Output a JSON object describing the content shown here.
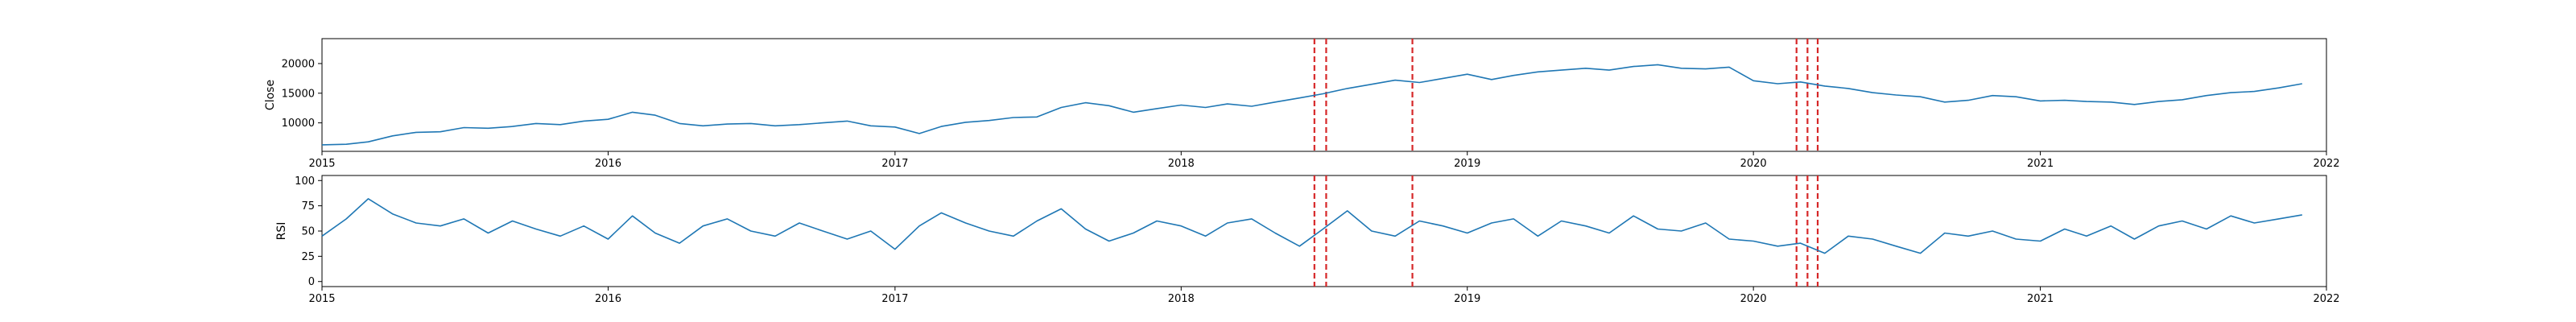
{
  "chart_data": [
    {
      "type": "line",
      "ylabel": "Close",
      "xlabel": "",
      "xlim": [
        "2015-01-01",
        "2022-01-01"
      ],
      "ylim": [
        5200,
        24200
      ],
      "x_ticks": [
        "2015",
        "2016",
        "2017",
        "2018",
        "2019",
        "2020",
        "2021",
        "2022"
      ],
      "y_ticks": [
        10000,
        15000,
        20000
      ],
      "grid": false,
      "series": [
        {
          "color": "#1f77b4",
          "points": [
            [
              "2015-01-01",
              6300
            ],
            [
              "2015-02-01",
              6400
            ],
            [
              "2015-03-01",
              6800
            ],
            [
              "2015-04-01",
              7800
            ],
            [
              "2015-05-01",
              8400
            ],
            [
              "2015-06-01",
              8500
            ],
            [
              "2015-07-01",
              9200
            ],
            [
              "2015-08-01",
              9100
            ],
            [
              "2015-09-01",
              9400
            ],
            [
              "2015-10-01",
              9900
            ],
            [
              "2015-11-01",
              9700
            ],
            [
              "2015-12-01",
              10300
            ],
            [
              "2016-01-01",
              10600
            ],
            [
              "2016-02-01",
              11800
            ],
            [
              "2016-03-01",
              11300
            ],
            [
              "2016-04-01",
              9900
            ],
            [
              "2016-05-01",
              9500
            ],
            [
              "2016-06-01",
              9800
            ],
            [
              "2016-07-01",
              9900
            ],
            [
              "2016-08-01",
              9500
            ],
            [
              "2016-09-01",
              9700
            ],
            [
              "2016-10-01",
              10000
            ],
            [
              "2016-11-01",
              10300
            ],
            [
              "2016-12-01",
              9500
            ],
            [
              "2017-01-01",
              9300
            ],
            [
              "2017-02-01",
              8200
            ],
            [
              "2017-03-01",
              9400
            ],
            [
              "2017-04-01",
              10100
            ],
            [
              "2017-05-01",
              10400
            ],
            [
              "2017-06-01",
              10900
            ],
            [
              "2017-07-01",
              11000
            ],
            [
              "2017-08-01",
              12600
            ],
            [
              "2017-09-01",
              13400
            ],
            [
              "2017-10-01",
              12900
            ],
            [
              "2017-11-01",
              11800
            ],
            [
              "2017-12-01",
              12400
            ],
            [
              "2018-01-01",
              13000
            ],
            [
              "2018-02-01",
              12600
            ],
            [
              "2018-03-01",
              13200
            ],
            [
              "2018-04-01",
              12800
            ],
            [
              "2018-05-01",
              13500
            ],
            [
              "2018-06-01",
              14200
            ],
            [
              "2018-07-01",
              14900
            ],
            [
              "2018-08-01",
              15800
            ],
            [
              "2018-09-01",
              16500
            ],
            [
              "2018-10-01",
              17200
            ],
            [
              "2018-11-01",
              16800
            ],
            [
              "2018-12-01",
              17500
            ],
            [
              "2019-01-01",
              18200
            ],
            [
              "2019-02-01",
              17300
            ],
            [
              "2019-03-01",
              18000
            ],
            [
              "2019-04-01",
              18600
            ],
            [
              "2019-05-01",
              18900
            ],
            [
              "2019-06-01",
              19200
            ],
            [
              "2019-07-01",
              18900
            ],
            [
              "2019-08-01",
              19500
            ],
            [
              "2019-09-01",
              19800
            ],
            [
              "2019-10-01",
              19200
            ],
            [
              "2019-11-01",
              19100
            ],
            [
              "2019-12-01",
              19400
            ],
            [
              "2020-01-01",
              17100
            ],
            [
              "2020-02-01",
              16600
            ],
            [
              "2020-03-01",
              16900
            ],
            [
              "2020-04-01",
              16200
            ],
            [
              "2020-05-01",
              15800
            ],
            [
              "2020-06-01",
              15100
            ],
            [
              "2020-07-01",
              14700
            ],
            [
              "2020-08-01",
              14400
            ],
            [
              "2020-09-01",
              13500
            ],
            [
              "2020-10-01",
              13800
            ],
            [
              "2020-11-01",
              14600
            ],
            [
              "2020-12-01",
              14400
            ],
            [
              "2021-01-01",
              13700
            ],
            [
              "2021-02-01",
              13800
            ],
            [
              "2021-03-01",
              13600
            ],
            [
              "2021-04-01",
              13500
            ],
            [
              "2021-05-01",
              13100
            ],
            [
              "2021-06-01",
              13600
            ],
            [
              "2021-07-01",
              13900
            ],
            [
              "2021-08-01",
              14600
            ],
            [
              "2021-09-01",
              15100
            ],
            [
              "2021-10-01",
              15300
            ],
            [
              "2021-11-01",
              15900
            ],
            [
              "2021-12-01",
              16600
            ]
          ]
        }
      ],
      "vlines": {
        "color": "#d62728",
        "style": "dashed",
        "x": [
          "2018-06-20",
          "2018-07-05",
          "2018-10-23",
          "2020-02-25",
          "2020-03-10",
          "2020-03-23"
        ]
      }
    },
    {
      "type": "line",
      "ylabel": "RSI",
      "xlabel": "",
      "xlim": [
        "2015-01-01",
        "2022-01-01"
      ],
      "ylim": [
        -5,
        105
      ],
      "x_ticks": [
        "2015",
        "2016",
        "2017",
        "2018",
        "2019",
        "2020",
        "2021",
        "2022"
      ],
      "y_ticks": [
        0,
        25,
        50,
        75,
        100
      ],
      "grid": false,
      "series": [
        {
          "color": "#1f77b4",
          "points": [
            [
              "2015-01-01",
              45
            ],
            [
              "2015-02-01",
              62
            ],
            [
              "2015-03-01",
              82
            ],
            [
              "2015-04-01",
              67
            ],
            [
              "2015-05-01",
              58
            ],
            [
              "2015-06-01",
              55
            ],
            [
              "2015-07-01",
              62
            ],
            [
              "2015-08-01",
              48
            ],
            [
              "2015-09-01",
              60
            ],
            [
              "2015-10-01",
              52
            ],
            [
              "2015-11-01",
              45
            ],
            [
              "2015-12-01",
              55
            ],
            [
              "2016-01-01",
              42
            ],
            [
              "2016-02-01",
              65
            ],
            [
              "2016-03-01",
              48
            ],
            [
              "2016-04-01",
              38
            ],
            [
              "2016-05-01",
              55
            ],
            [
              "2016-06-01",
              62
            ],
            [
              "2016-07-01",
              50
            ],
            [
              "2016-08-01",
              45
            ],
            [
              "2016-09-01",
              58
            ],
            [
              "2016-10-01",
              50
            ],
            [
              "2016-11-01",
              42
            ],
            [
              "2016-12-01",
              50
            ],
            [
              "2017-01-01",
              32
            ],
            [
              "2017-02-01",
              55
            ],
            [
              "2017-03-01",
              68
            ],
            [
              "2017-04-01",
              58
            ],
            [
              "2017-05-01",
              50
            ],
            [
              "2017-06-01",
              45
            ],
            [
              "2017-07-01",
              60
            ],
            [
              "2017-08-01",
              72
            ],
            [
              "2017-09-01",
              52
            ],
            [
              "2017-10-01",
              40
            ],
            [
              "2017-11-01",
              48
            ],
            [
              "2017-12-01",
              60
            ],
            [
              "2018-01-01",
              55
            ],
            [
              "2018-02-01",
              45
            ],
            [
              "2018-03-01",
              58
            ],
            [
              "2018-04-01",
              62
            ],
            [
              "2018-05-01",
              48
            ],
            [
              "2018-06-01",
              35
            ],
            [
              "2018-07-01",
              52
            ],
            [
              "2018-08-01",
              70
            ],
            [
              "2018-09-01",
              50
            ],
            [
              "2018-10-01",
              45
            ],
            [
              "2018-11-01",
              60
            ],
            [
              "2018-12-01",
              55
            ],
            [
              "2019-01-01",
              48
            ],
            [
              "2019-02-01",
              58
            ],
            [
              "2019-03-01",
              62
            ],
            [
              "2019-04-01",
              45
            ],
            [
              "2019-05-01",
              60
            ],
            [
              "2019-06-01",
              55
            ],
            [
              "2019-07-01",
              48
            ],
            [
              "2019-08-01",
              65
            ],
            [
              "2019-09-01",
              52
            ],
            [
              "2019-10-01",
              50
            ],
            [
              "2019-11-01",
              58
            ],
            [
              "2019-12-01",
              42
            ],
            [
              "2020-01-01",
              40
            ],
            [
              "2020-02-01",
              35
            ],
            [
              "2020-03-01",
              38
            ],
            [
              "2020-04-01",
              28
            ],
            [
              "2020-05-01",
              45
            ],
            [
              "2020-06-01",
              42
            ],
            [
              "2020-07-01",
              35
            ],
            [
              "2020-08-01",
              28
            ],
            [
              "2020-09-01",
              48
            ],
            [
              "2020-10-01",
              45
            ],
            [
              "2020-11-01",
              50
            ],
            [
              "2020-12-01",
              42
            ],
            [
              "2021-01-01",
              40
            ],
            [
              "2021-02-01",
              52
            ],
            [
              "2021-03-01",
              45
            ],
            [
              "2021-04-01",
              55
            ],
            [
              "2021-05-01",
              42
            ],
            [
              "2021-06-01",
              55
            ],
            [
              "2021-07-01",
              60
            ],
            [
              "2021-08-01",
              52
            ],
            [
              "2021-09-01",
              65
            ],
            [
              "2021-10-01",
              58
            ],
            [
              "2021-11-01",
              62
            ],
            [
              "2021-12-01",
              66
            ]
          ]
        }
      ],
      "vlines": {
        "color": "#d62728",
        "style": "dashed",
        "x": [
          "2018-06-20",
          "2018-07-05",
          "2018-10-23",
          "2020-02-25",
          "2020-03-10",
          "2020-03-23"
        ]
      }
    }
  ]
}
